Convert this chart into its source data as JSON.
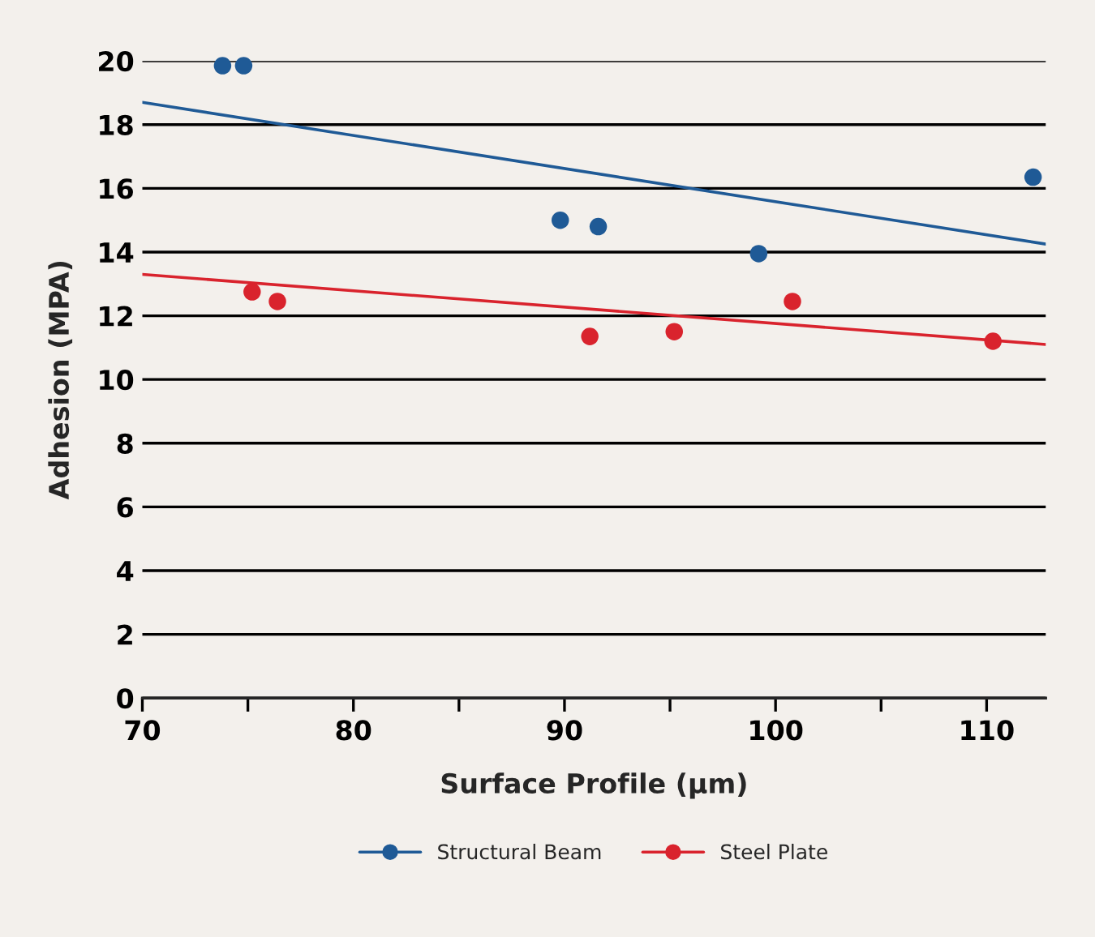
{
  "chart_data": {
    "type": "scatter",
    "xlabel": "Surface Profile (µm)",
    "ylabel": "Adhesion (MPA)",
    "xlim": [
      70,
      112.8
    ],
    "xticks": [
      70,
      {
        "value": 75,
        "label": null
      },
      80,
      {
        "value": 85,
        "label": null
      },
      90,
      {
        "value": 95,
        "label": null
      },
      100,
      {
        "value": 105,
        "label": null
      },
      110
    ],
    "ylim": [
      0,
      20
    ],
    "yticks": [
      0,
      2,
      4,
      6,
      8,
      10,
      12,
      14,
      16,
      18,
      20
    ],
    "grid": "y",
    "legend": "bottom",
    "marker": "circle",
    "series": [
      {
        "name": "Structural Beam",
        "color": "#1f5a96",
        "x": [
          73.8,
          74.8,
          89.8,
          91.6,
          99.2,
          112.2
        ],
        "values": [
          19.85,
          19.85,
          15.0,
          14.8,
          13.95,
          16.35
        ]
      },
      {
        "name": "Steel Plate",
        "color": "#d9232d",
        "x": [
          75.2,
          76.4,
          91.2,
          95.2,
          100.8,
          110.3
        ],
        "values": [
          12.75,
          12.45,
          11.35,
          11.5,
          12.45,
          11.2
        ]
      },
      {
        "type": "line",
        "marker": "none",
        "color": "#1f5a96",
        "x": [
          70,
          112.8
        ],
        "values": [
          18.7,
          14.25
        ]
      },
      {
        "type": "line",
        "marker": "none",
        "color": "#d9232d",
        "x": [
          70,
          112.8
        ],
        "values": [
          13.3,
          11.1
        ]
      }
    ]
  }
}
